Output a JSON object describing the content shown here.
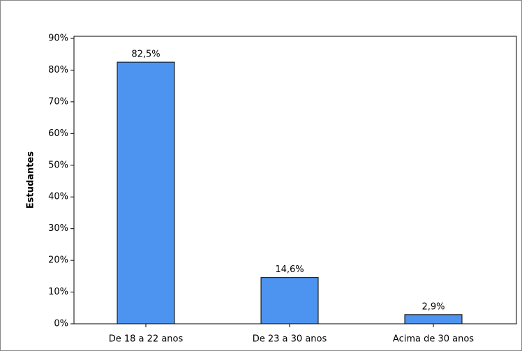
{
  "chart_data": {
    "type": "bar",
    "ylabel": "Estudantes",
    "categories": [
      "De 18 a 22 anos",
      "De 23 a 30 anos",
      "Acima de 30 anos"
    ],
    "values": [
      82.5,
      14.6,
      2.9
    ],
    "value_labels": [
      "82,5%",
      "14,6%",
      "2,9%"
    ],
    "color": "#4d94f0",
    "ylim": [
      0,
      90
    ],
    "yticks": [
      {
        "value": 0,
        "label": "0%"
      },
      {
        "value": 10,
        "label": "10%"
      },
      {
        "value": 20,
        "label": "20%"
      },
      {
        "value": 30,
        "label": "30%"
      },
      {
        "value": 40,
        "label": "40%"
      },
      {
        "value": 50,
        "label": "50%"
      },
      {
        "value": 60,
        "label": "60%"
      },
      {
        "value": 70,
        "label": "70%"
      },
      {
        "value": 80,
        "label": "80%"
      },
      {
        "value": 90,
        "label": "90%"
      }
    ],
    "grid": false
  }
}
